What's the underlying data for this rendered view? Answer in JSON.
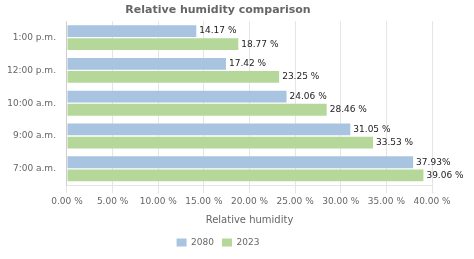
{
  "chart_data": {
    "type": "bar",
    "orientation": "horizontal",
    "title": "Relative humidity comparison",
    "xlabel": "Relative humidity",
    "categories": [
      "1:00 p.m.",
      "12:00 p.m.",
      "10:00 a.m.",
      "9:00 a.m.",
      "7:00 a.m."
    ],
    "series": [
      {
        "name": "2080",
        "color": "#a8c4e0",
        "values": [
          14.17,
          17.42,
          24.06,
          31.05,
          37.93
        ],
        "value_labels": [
          "14.17 %",
          "17.42 %",
          "24.06 %",
          "31.05 %",
          "37.93%"
        ]
      },
      {
        "name": "2023",
        "color": "#b5d89a",
        "values": [
          18.77,
          23.25,
          28.46,
          33.53,
          39.06
        ],
        "value_labels": [
          "18.77 %",
          "23.25 %",
          "28.46 %",
          "33.53 %",
          "39.06 %"
        ]
      }
    ],
    "xlim": [
      0,
      40
    ],
    "xticks": [
      {
        "value": 0,
        "label": "0.00 %"
      },
      {
        "value": 5,
        "label": "5.00 %"
      },
      {
        "value": 10,
        "label": "10.00 %"
      },
      {
        "value": 15,
        "label": "15.00 %"
      },
      {
        "value": 20,
        "label": "20.00 %"
      },
      {
        "value": 25,
        "label": "25.00 %"
      },
      {
        "value": 30,
        "label": "30.00 %"
      },
      {
        "value": 35,
        "label": "35.00 %"
      },
      {
        "value": 40,
        "label": "40.00 %"
      }
    ],
    "grid": true,
    "legend": "bottom",
    "data_labels": true
  }
}
